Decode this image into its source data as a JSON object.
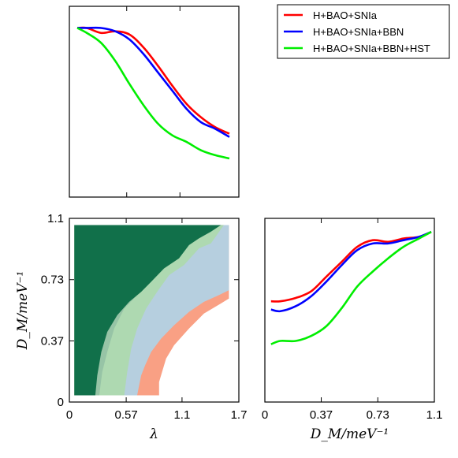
{
  "chart_data": [
    {
      "panel": "top-left",
      "type": "line",
      "title": "",
      "xlabel": "",
      "ylabel": "",
      "xlim": [
        0,
        1.7
      ],
      "ylim": [
        0,
        1.05
      ],
      "show_ticks": false,
      "series": [
        {
          "name": "H+BAO+SNIa",
          "color": "#ff0000",
          "x": [
            0.05,
            0.15,
            0.3,
            0.45,
            0.6,
            0.75,
            0.9,
            1.05,
            1.2,
            1.35,
            1.5,
            1.65
          ],
          "y": [
            1.0,
            1.0,
            0.97,
            0.98,
            0.96,
            0.88,
            0.77,
            0.65,
            0.54,
            0.46,
            0.4,
            0.36
          ]
        },
        {
          "name": "H+BAO+SNIa+BBN",
          "color": "#0000ff",
          "x": [
            0.05,
            0.15,
            0.3,
            0.45,
            0.6,
            0.75,
            0.9,
            1.05,
            1.2,
            1.35,
            1.5,
            1.65
          ],
          "y": [
            1.0,
            1.0,
            1.0,
            0.98,
            0.93,
            0.84,
            0.73,
            0.62,
            0.51,
            0.43,
            0.39,
            0.34
          ]
        },
        {
          "name": "H+BAO+SNIa+BBN+HST",
          "color": "#00ee00",
          "x": [
            0.05,
            0.15,
            0.3,
            0.45,
            0.6,
            0.75,
            0.9,
            1.05,
            1.2,
            1.35,
            1.5,
            1.65
          ],
          "y": [
            1.0,
            0.97,
            0.91,
            0.8,
            0.66,
            0.53,
            0.42,
            0.35,
            0.31,
            0.26,
            0.23,
            0.21
          ]
        }
      ]
    },
    {
      "panel": "bottom-left",
      "type": "contour",
      "title": "",
      "xlabel": "λ",
      "ylabel": "D_M/meV⁻¹",
      "xlim": [
        0,
        1.7
      ],
      "ylim": [
        0,
        1.1
      ],
      "xticks": [
        "0",
        "0.57",
        "1.1",
        "1.7"
      ],
      "yticks": [
        "0",
        "0.37",
        "0.73",
        "1.1"
      ],
      "x_tick_values": [
        0,
        0.57,
        1.13,
        1.7
      ],
      "y_tick_values": [
        0,
        0.366,
        0.733,
        1.1
      ],
      "regions": [
        {
          "level": "outermost",
          "color": "#f9a084",
          "boundary_x": [
            1.6,
            1.6,
            1.52,
            1.35,
            1.2,
            1.05,
            0.97,
            0.93,
            0.9,
            0.9
          ],
          "boundary_y": [
            0.58,
            0.62,
            0.59,
            0.53,
            0.44,
            0.34,
            0.26,
            0.18,
            0.12,
            0.04
          ]
        },
        {
          "level": "outer",
          "color": "#b6cfdf",
          "boundary_x": [
            1.6,
            1.6,
            1.5,
            1.35,
            1.2,
            1.05,
            0.92,
            0.82,
            0.76,
            0.72,
            0.7,
            0.68
          ],
          "boundary_y": [
            0.62,
            0.67,
            0.64,
            0.6,
            0.54,
            0.46,
            0.38,
            0.3,
            0.22,
            0.16,
            0.1,
            0.04
          ]
        },
        {
          "level": "middle",
          "color": "#aed9b1",
          "boundary_x": [
            1.6,
            1.6,
            1.55,
            1.42,
            1.3,
            1.15,
            1.0,
            0.88,
            0.77,
            0.68,
            0.62,
            0.58,
            0.55
          ],
          "boundary_y": [
            0.7,
            1.06,
            1.06,
            0.95,
            0.92,
            0.82,
            0.76,
            0.66,
            0.56,
            0.44,
            0.32,
            0.18,
            0.04
          ]
        },
        {
          "level": "inner",
          "color": "#97c4a6",
          "boundary_x": [
            1.55,
            1.42,
            1.3,
            1.2,
            1.1,
            0.95,
            0.8,
            0.68,
            0.55,
            0.45,
            0.38,
            0.33,
            0.3
          ],
          "boundary_y": [
            1.06,
            1.04,
            0.98,
            0.94,
            0.88,
            0.8,
            0.73,
            0.64,
            0.56,
            0.44,
            0.3,
            0.18,
            0.04
          ]
        },
        {
          "level": "innermost",
          "color": "#11704a",
          "boundary_x": [
            0.05,
            0.05,
            1.52,
            1.42,
            1.3,
            1.2,
            1.1,
            0.95,
            0.82,
            0.72,
            0.6,
            0.48,
            0.38,
            0.32,
            0.28,
            0.26
          ],
          "boundary_y": [
            0.04,
            1.06,
            1.06,
            1.02,
            0.98,
            0.94,
            0.86,
            0.8,
            0.72,
            0.66,
            0.6,
            0.52,
            0.42,
            0.3,
            0.16,
            0.04
          ]
        }
      ]
    },
    {
      "panel": "bottom-right",
      "type": "line",
      "title": "",
      "xlabel": "D_M/meV⁻¹",
      "ylabel": "",
      "xlim": [
        0,
        1.1
      ],
      "ylim": [
        0,
        1.05
      ],
      "xticks": [
        "0",
        "0.37",
        "0.73",
        "1.1"
      ],
      "x_tick_values": [
        0,
        0.366,
        0.733,
        1.1
      ],
      "show_yticks": false,
      "series": [
        {
          "name": "H+BAO+SNIa",
          "color": "#ff0000",
          "x": [
            0.04,
            0.1,
            0.2,
            0.3,
            0.4,
            0.5,
            0.6,
            0.7,
            0.8,
            0.9,
            1.0,
            1.08
          ],
          "y": [
            0.61,
            0.61,
            0.63,
            0.67,
            0.76,
            0.85,
            0.94,
            0.98,
            0.97,
            0.99,
            1.0,
            1.03
          ]
        },
        {
          "name": "H+BAO+SNIa+BBN",
          "color": "#0000ff",
          "x": [
            0.04,
            0.1,
            0.2,
            0.3,
            0.4,
            0.5,
            0.6,
            0.7,
            0.8,
            0.9,
            1.0,
            1.08
          ],
          "y": [
            0.56,
            0.55,
            0.58,
            0.64,
            0.73,
            0.83,
            0.92,
            0.96,
            0.96,
            0.98,
            1.0,
            1.03
          ]
        },
        {
          "name": "H+BAO+SNIa+BBN+HST",
          "color": "#00ee00",
          "x": [
            0.04,
            0.1,
            0.2,
            0.3,
            0.4,
            0.5,
            0.6,
            0.7,
            0.8,
            0.9,
            1.0,
            1.08
          ],
          "y": [
            0.35,
            0.37,
            0.37,
            0.4,
            0.46,
            0.57,
            0.7,
            0.79,
            0.87,
            0.94,
            0.99,
            1.03
          ]
        }
      ]
    }
  ],
  "legend": {
    "placement": "top-right",
    "entries": [
      {
        "label": "H+BAO+SNIa",
        "color": "#ff0000"
      },
      {
        "label": "H+BAO+SNIa+BBN",
        "color": "#0000ff"
      },
      {
        "label": "H+BAO+SNIa+BBN+HST",
        "color": "#00ee00"
      }
    ]
  }
}
